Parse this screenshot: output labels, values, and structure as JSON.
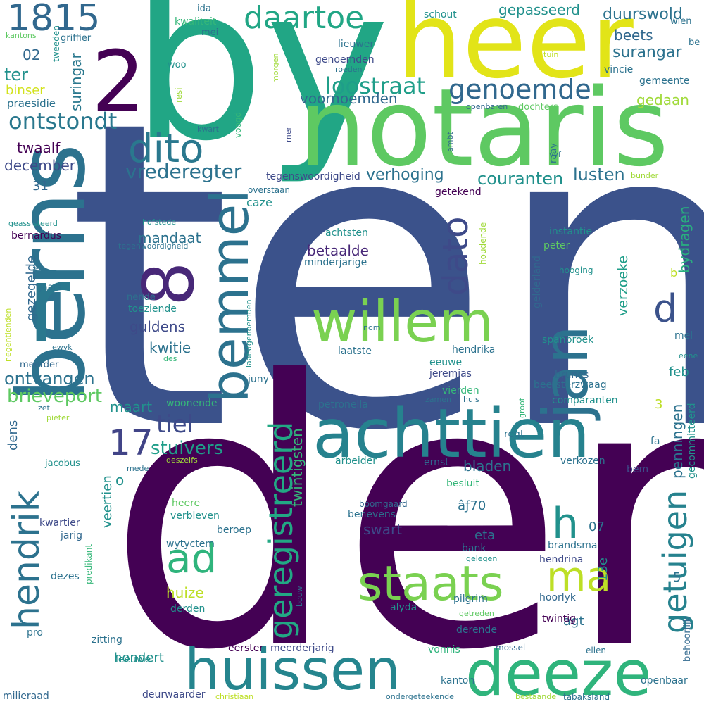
{
  "colors": {
    "background": "#ffffff",
    "palette": [
      "#440154",
      "#3b528b",
      "#21918c",
      "#5ec962",
      "#fde725"
    ]
  },
  "words": [
    {
      "text": "ten",
      "color": "#3b528b"
    },
    {
      "text": "den",
      "color": "#440154"
    },
    {
      "text": "by",
      "color": "#21a685"
    },
    {
      "text": "heer",
      "color": "#e2e418"
    },
    {
      "text": "notaris",
      "color": "#5ec962"
    },
    {
      "text": "berns",
      "color": "#2c728e"
    },
    {
      "text": "achttien",
      "color": "#26828e"
    },
    {
      "text": "deeze",
      "color": "#2fb47c"
    },
    {
      "text": "huissen",
      "color": "#25858e"
    },
    {
      "text": "jan",
      "color": "#2c728e"
    },
    {
      "text": "willem",
      "color": "#7ad151"
    },
    {
      "text": "bemmel",
      "color": "#2c728e"
    },
    {
      "text": "staats",
      "color": "#7ad151"
    },
    {
      "text": "genoemde",
      "color": "#31688e"
    },
    {
      "text": "dito",
      "color": "#2a788e"
    },
    {
      "text": "r",
      "color": "#2a788e"
    },
    {
      "text": "8",
      "color": "#482878"
    },
    {
      "text": "2",
      "color": "#440154"
    },
    {
      "text": "1815",
      "color": "#31688e"
    },
    {
      "text": "hendrik",
      "color": "#2c728e"
    },
    {
      "text": "geregistreerd",
      "color": "#22a884"
    },
    {
      "text": "getuigen",
      "color": "#26828e"
    },
    {
      "text": "ad",
      "color": "#2fb47c"
    },
    {
      "text": "ma",
      "color": "#bddf26"
    },
    {
      "text": "daartoe",
      "color": "#21a685"
    },
    {
      "text": "dato",
      "color": "#3e4a89"
    },
    {
      "text": "h",
      "color": "#21918c"
    },
    {
      "text": "d",
      "color": "#3b528b"
    },
    {
      "text": "loostraat",
      "color": "#1f9e89"
    },
    {
      "text": "17",
      "color": "#414487"
    },
    {
      "text": "tiel",
      "color": "#3e4a89"
    },
    {
      "text": "ontstondt",
      "color": "#2a788e"
    },
    {
      "text": "vrederegter",
      "color": "#2c728e"
    },
    {
      "text": "stuivers",
      "color": "#1f9e89"
    },
    {
      "text": "brieveport",
      "color": "#5ec962"
    },
    {
      "text": "ontvangen",
      "color": "#2c728e"
    },
    {
      "text": "verhoging",
      "color": "#2c728e"
    },
    {
      "text": "couranten",
      "color": "#21918c"
    },
    {
      "text": "lusten",
      "color": "#2c728e"
    },
    {
      "text": "duurswold",
      "color": "#2c728e"
    },
    {
      "text": "gepasseerd",
      "color": "#21918c"
    },
    {
      "text": "surangar",
      "color": "#2c728e"
    },
    {
      "text": "beets",
      "color": "#31688e"
    },
    {
      "text": "gedaan",
      "color": "#a0da39"
    },
    {
      "text": "voornoemden",
      "color": "#31688e"
    },
    {
      "text": "twaalf",
      "color": "#440154"
    },
    {
      "text": "december",
      "color": "#3e4a89"
    },
    {
      "text": "ter",
      "color": "#21918c"
    },
    {
      "text": "binser",
      "color": "#d2e21b"
    },
    {
      "text": "suringar",
      "color": "#2a788e"
    },
    {
      "text": "praesidie",
      "color": "#2c728e"
    },
    {
      "text": "02",
      "color": "#31688e"
    },
    {
      "text": "31",
      "color": "#31688e"
    },
    {
      "text": "mandaat",
      "color": "#2c728e"
    },
    {
      "text": "betaalde",
      "color": "#482878"
    },
    {
      "text": "guldens",
      "color": "#3e4a89"
    },
    {
      "text": "kwitie",
      "color": "#2c728e"
    },
    {
      "text": "maart",
      "color": "#21918c"
    },
    {
      "text": "verzoeke",
      "color": "#1f9e89"
    },
    {
      "text": "bydragen",
      "color": "#29af7f"
    },
    {
      "text": "penningen",
      "color": "#2c728e"
    },
    {
      "text": "twintigsten",
      "color": "#35b779"
    },
    {
      "text": "bladen",
      "color": "#2c728e"
    },
    {
      "text": "veertien",
      "color": "#21918c"
    },
    {
      "text": "gezegelde",
      "color": "#31688e"
    },
    {
      "text": "dens",
      "color": "#31688e"
    },
    {
      "text": "feb",
      "color": "#21918c"
    },
    {
      "text": "agt",
      "color": "#2c728e"
    },
    {
      "text": "eta",
      "color": "#2c728e"
    },
    {
      "text": "swart",
      "color": "#3e4a89"
    },
    {
      "text": "hondert",
      "color": "#21918c"
    },
    {
      "text": "huize",
      "color": "#bddf26"
    },
    {
      "text": "o",
      "color": "#21918c"
    },
    {
      "text": "07",
      "color": "#2c728e"
    },
    {
      "text": "caze",
      "color": "#21918c"
    },
    {
      "text": "tegenswoordigheid",
      "color": "#3e4a89"
    },
    {
      "text": "getekend",
      "color": "#440154"
    },
    {
      "text": "overstaan",
      "color": "#2c728e"
    },
    {
      "text": "achtsten",
      "color": "#21918c"
    },
    {
      "text": "minderjarige",
      "color": "#2c728e"
    },
    {
      "text": "instantie",
      "color": "#21918c"
    },
    {
      "text": "peter",
      "color": "#5ec962"
    },
    {
      "text": "hooging",
      "color": "#21918c"
    },
    {
      "text": "houdende",
      "color": "#a0da39"
    },
    {
      "text": "gelderland",
      "color": "#31688e"
    },
    {
      "text": "spanbroek",
      "color": "#21918c"
    },
    {
      "text": "hendrika",
      "color": "#2c728e"
    },
    {
      "text": "laatste",
      "color": "#2c728e"
    },
    {
      "text": "eeuwe",
      "color": "#21918c"
    },
    {
      "text": "jeremias",
      "color": "#3e4a89"
    },
    {
      "text": "brunes",
      "color": "#31688e"
    },
    {
      "text": "beetsterzwaag",
      "color": "#2c728e"
    },
    {
      "text": "vierden",
      "color": "#35b779"
    },
    {
      "text": "comparanten",
      "color": "#21918c"
    },
    {
      "text": "petronella",
      "color": "#2c728e"
    },
    {
      "text": "zamen",
      "color": "#2c728e"
    },
    {
      "text": "huis",
      "color": "#2c728e"
    },
    {
      "text": "juny",
      "color": "#2c728e"
    },
    {
      "text": "woonende",
      "color": "#35b779"
    },
    {
      "text": "regt",
      "color": "#2c728e"
    },
    {
      "text": "arbeider",
      "color": "#21918c"
    },
    {
      "text": "ernst",
      "color": "#31688e"
    },
    {
      "text": "verkozen",
      "color": "#2c728e"
    },
    {
      "text": "besluit",
      "color": "#35b779"
    },
    {
      "text": "âƒ70",
      "color": "#2c728e"
    },
    {
      "text": "boomgaard",
      "color": "#31688e"
    },
    {
      "text": "benevens",
      "color": "#2c728e"
    },
    {
      "text": "heere",
      "color": "#5ec962"
    },
    {
      "text": "verbleven",
      "color": "#21918c"
    },
    {
      "text": "beroep",
      "color": "#2c728e"
    },
    {
      "text": "wytyctem",
      "color": "#2c728e"
    },
    {
      "text": "kwartier",
      "color": "#3e4a89"
    },
    {
      "text": "jarig",
      "color": "#31688e"
    },
    {
      "text": "bank",
      "color": "#2c728e"
    },
    {
      "text": "gelegen",
      "color": "#21918c"
    },
    {
      "text": "brandsma",
      "color": "#2c728e"
    },
    {
      "text": "hendrina",
      "color": "#3e4a89"
    },
    {
      "text": "pilgrim",
      "color": "#2c728e"
    },
    {
      "text": "hoorlyk",
      "color": "#31688e"
    },
    {
      "text": "twintig",
      "color": "#440154"
    },
    {
      "text": "alyda",
      "color": "#21918c"
    },
    {
      "text": "derende",
      "color": "#2c728e"
    },
    {
      "text": "getreden",
      "color": "#5ec962"
    },
    {
      "text": "derden",
      "color": "#21918c"
    },
    {
      "text": "predikant",
      "color": "#35b779"
    },
    {
      "text": "dezes",
      "color": "#2c728e"
    },
    {
      "text": "zitting",
      "color": "#2c728e"
    },
    {
      "text": "eerster",
      "color": "#440154"
    },
    {
      "text": "meerderjarig",
      "color": "#3e4a89"
    },
    {
      "text": "vonnis",
      "color": "#2fb47c"
    },
    {
      "text": "mossel",
      "color": "#31688e"
    },
    {
      "text": "ellen",
      "color": "#2c728e"
    },
    {
      "text": "leeuwe",
      "color": "#21918c"
    },
    {
      "text": "kanton",
      "color": "#2c728e"
    },
    {
      "text": "milieraad",
      "color": "#31688e"
    },
    {
      "text": "deurwaarder",
      "color": "#3e4a89"
    },
    {
      "text": "christiaan",
      "color": "#bddf26"
    },
    {
      "text": "ondergeteekende",
      "color": "#2c728e"
    },
    {
      "text": "bestaande",
      "color": "#a0da39"
    },
    {
      "text": "tabaksland",
      "color": "#2c728e"
    },
    {
      "text": "openbaar",
      "color": "#2c728e"
    },
    {
      "text": "behoorlijk",
      "color": "#31688e"
    },
    {
      "text": "bouw",
      "color": "#2c728e"
    },
    {
      "text": "13e",
      "color": "#21918c"
    },
    {
      "text": "5",
      "color": "#2c728e"
    },
    {
      "text": "bem",
      "color": "#3e4a89"
    },
    {
      "text": "gecommitteerd",
      "color": "#21918c"
    },
    {
      "text": "fa",
      "color": "#2c728e"
    },
    {
      "text": "3",
      "color": "#bddf26"
    },
    {
      "text": "mel",
      "color": "#2c728e"
    },
    {
      "text": "eene",
      "color": "#21918c"
    },
    {
      "text": "b",
      "color": "#bddf26"
    },
    {
      "text": "gemeente",
      "color": "#2c728e"
    },
    {
      "text": "vincie",
      "color": "#2c728e"
    },
    {
      "text": "bunder",
      "color": "#a0da39"
    },
    {
      "text": "raay",
      "color": "#2c728e"
    },
    {
      "text": "vyf",
      "color": "#2c728e"
    },
    {
      "text": "ambt",
      "color": "#31688e"
    },
    {
      "text": "openbaren",
      "color": "#31688e"
    },
    {
      "text": "dochters",
      "color": "#5ec962"
    },
    {
      "text": "tuin",
      "color": "#bddf26"
    },
    {
      "text": "wien",
      "color": "#2c728e"
    },
    {
      "text": "be",
      "color": "#2c728e"
    },
    {
      "text": "schout",
      "color": "#21918c"
    },
    {
      "text": "lieuwer",
      "color": "#2c728e"
    },
    {
      "text": "genoemden",
      "color": "#3e4a89"
    },
    {
      "text": "roeden",
      "color": "#2c728e"
    },
    {
      "text": "morgen",
      "color": "#a0da39"
    },
    {
      "text": "kwaliteit",
      "color": "#35b779"
    },
    {
      "text": "mei",
      "color": "#2c728e"
    },
    {
      "text": "ida",
      "color": "#2c728e"
    },
    {
      "text": "woo",
      "color": "#21918c"
    },
    {
      "text": "resi",
      "color": "#a0da39"
    },
    {
      "text": "voogd",
      "color": "#35b779"
    },
    {
      "text": "kwart",
      "color": "#2c728e"
    },
    {
      "text": "mer",
      "color": "#3e4a89"
    },
    {
      "text": "tweeden",
      "color": "#21918c"
    },
    {
      "text": "griffier",
      "color": "#2c728e"
    },
    {
      "text": "kantons",
      "color": "#5ec962"
    },
    {
      "text": "geassisteerd",
      "color": "#21918c"
    },
    {
      "text": "hofstede",
      "color": "#21918c"
    },
    {
      "text": "tegenwoordigheid",
      "color": "#2c728e"
    },
    {
      "text": "bernardus",
      "color": "#440154"
    },
    {
      "text": "wylen",
      "color": "#2c728e"
    },
    {
      "text": "jaars",
      "color": "#2c728e"
    },
    {
      "text": "nende",
      "color": "#2c728e"
    },
    {
      "text": "toeziende",
      "color": "#21918c"
    },
    {
      "text": "laatstgenoemden",
      "color": "#21918c"
    },
    {
      "text": "negentienden",
      "color": "#bddf26"
    },
    {
      "text": "ewyk",
      "color": "#2c728e"
    },
    {
      "text": "des",
      "color": "#35b779"
    },
    {
      "text": "meerder",
      "color": "#31688e"
    },
    {
      "text": "nom",
      "color": "#2c728e"
    },
    {
      "text": "zet",
      "color": "#2c728e"
    },
    {
      "text": "pieter",
      "color": "#a0da39"
    },
    {
      "text": "jacobus",
      "color": "#21918c"
    },
    {
      "text": "mede",
      "color": "#2c728e"
    },
    {
      "text": "deszelfs",
      "color": "#a0da39"
    },
    {
      "text": "groot",
      "color": "#35b779"
    },
    {
      "text": "pro",
      "color": "#2c728e"
    }
  ]
}
